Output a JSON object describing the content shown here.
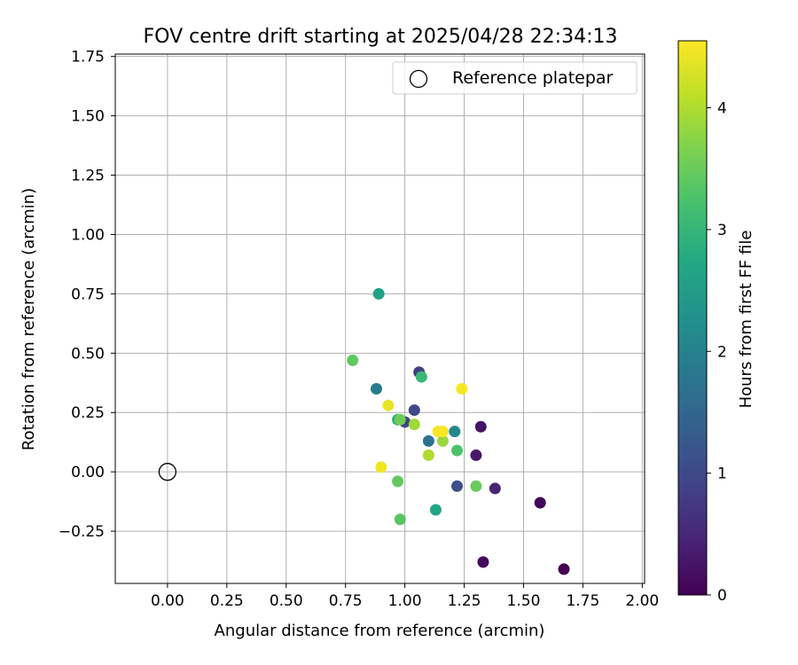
{
  "chart_data": {
    "type": "scatter",
    "title": "FOV centre drift starting at 2025/04/28 22:34:13",
    "xlabel": "Angular distance from reference (arcmin)",
    "ylabel": "Rotation from reference (arcmin)",
    "xlim": [
      -0.22,
      2.01
    ],
    "ylim": [
      -0.47,
      1.76
    ],
    "xticks": [
      0.0,
      0.25,
      0.5,
      0.75,
      1.0,
      1.25,
      1.5,
      1.75,
      2.0
    ],
    "xtick_labels": [
      "0.00",
      "0.25",
      "0.50",
      "0.75",
      "1.00",
      "1.25",
      "1.50",
      "1.75",
      "2.00"
    ],
    "yticks": [
      -0.25,
      0.0,
      0.25,
      0.5,
      0.75,
      1.0,
      1.25,
      1.5,
      1.75
    ],
    "ytick_labels": [
      "−0.25",
      "0.00",
      "0.25",
      "0.50",
      "0.75",
      "1.00",
      "1.25",
      "1.50",
      "1.75"
    ],
    "grid": true,
    "legend": {
      "position": "top-right",
      "entries": [
        "Reference platepar"
      ]
    },
    "reference_point": {
      "x": 0.0,
      "y": 0.0
    },
    "colorbar": {
      "label": "Hours from first FF file",
      "range": [
        0,
        4.55
      ],
      "ticks": [
        0,
        1,
        2,
        3,
        4
      ],
      "tick_labels": [
        "0",
        "1",
        "2",
        "3",
        "4"
      ],
      "colormap": "viridis"
    },
    "points": [
      {
        "x": 1.67,
        "y": -0.41,
        "hours": 0.0
      },
      {
        "x": 1.57,
        "y": -0.13,
        "hours": 0.05
      },
      {
        "x": 1.33,
        "y": -0.38,
        "hours": 0.1
      },
      {
        "x": 1.32,
        "y": 0.19,
        "hours": 0.25
      },
      {
        "x": 1.3,
        "y": 0.07,
        "hours": 0.3
      },
      {
        "x": 1.38,
        "y": -0.07,
        "hours": 0.45
      },
      {
        "x": 1.06,
        "y": 0.42,
        "hours": 0.85
      },
      {
        "x": 1.0,
        "y": 0.21,
        "hours": 0.9
      },
      {
        "x": 1.04,
        "y": 0.26,
        "hours": 1.0
      },
      {
        "x": 1.22,
        "y": -0.06,
        "hours": 1.1
      },
      {
        "x": 1.1,
        "y": 0.13,
        "hours": 1.75
      },
      {
        "x": 0.88,
        "y": 0.35,
        "hours": 1.9
      },
      {
        "x": 1.21,
        "y": 0.17,
        "hours": 2.1
      },
      {
        "x": 0.89,
        "y": 0.75,
        "hours": 2.6
      },
      {
        "x": 1.13,
        "y": -0.16,
        "hours": 2.7
      },
      {
        "x": 0.97,
        "y": 0.22,
        "hours": 2.9
      },
      {
        "x": 1.07,
        "y": 0.4,
        "hours": 3.05
      },
      {
        "x": 1.22,
        "y": 0.09,
        "hours": 3.25
      },
      {
        "x": 0.98,
        "y": -0.2,
        "hours": 3.35
      },
      {
        "x": 0.78,
        "y": 0.47,
        "hours": 3.4
      },
      {
        "x": 0.97,
        "y": -0.04,
        "hours": 3.45
      },
      {
        "x": 1.3,
        "y": -0.06,
        "hours": 3.5
      },
      {
        "x": 0.98,
        "y": 0.22,
        "hours": 3.55
      },
      {
        "x": 1.16,
        "y": 0.13,
        "hours": 3.85
      },
      {
        "x": 1.04,
        "y": 0.2,
        "hours": 3.9
      },
      {
        "x": 1.1,
        "y": 0.07,
        "hours": 4.0
      },
      {
        "x": 0.93,
        "y": 0.28,
        "hours": 4.4
      },
      {
        "x": 0.9,
        "y": 0.02,
        "hours": 4.45
      },
      {
        "x": 1.24,
        "y": 0.35,
        "hours": 4.5
      },
      {
        "x": 1.14,
        "y": 0.17,
        "hours": 4.5
      },
      {
        "x": 1.16,
        "y": 0.17,
        "hours": 4.52
      }
    ]
  }
}
